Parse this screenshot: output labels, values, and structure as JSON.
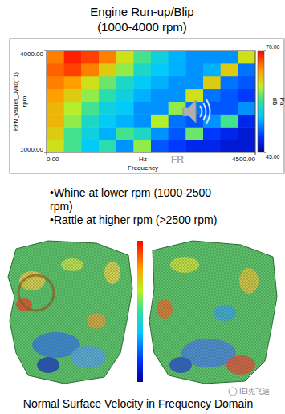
{
  "chart_data": {
    "type": "heatmap",
    "title": "Engine Run-up/Blip",
    "subtitle": "(1000-4000 rpm)",
    "x_label": "Frequency",
    "x_unit": "Hz",
    "y_label": "RPM_values_Dyno(T1)",
    "y_unit": "rpm",
    "annotation": "FR",
    "xlim": [
      0,
      4500
    ],
    "ylim": [
      1000,
      4000
    ],
    "xticks": [
      {
        "value": 0,
        "label": "0.00"
      },
      {
        "value": 4500,
        "label": "4500.00"
      }
    ],
    "yticks": [
      {
        "value": 1000,
        "label": "1000.00"
      },
      {
        "value": 4000,
        "label": "4000.00"
      }
    ],
    "xbins": [
      0,
      375,
      750,
      1125,
      1500,
      1875,
      2250,
      2625,
      3000,
      3375,
      3750,
      4125,
      4500
    ],
    "ybins": [
      1000,
      1375,
      1750,
      2125,
      2500,
      2875,
      3250,
      3625,
      4000
    ],
    "z": [
      [
        62,
        58,
        54,
        57,
        52,
        60,
        50,
        49,
        48,
        48,
        47,
        47
      ],
      [
        63,
        58,
        55,
        53,
        58,
        56,
        52,
        50,
        59,
        49,
        48,
        47
      ],
      [
        64,
        60,
        56,
        54,
        53,
        52,
        61,
        51,
        50,
        52,
        58,
        48
      ],
      [
        64,
        61,
        58,
        55,
        54,
        52,
        52,
        60,
        51,
        50,
        50,
        52
      ],
      [
        65,
        63,
        60,
        57,
        55,
        53,
        52,
        52,
        62,
        51,
        50,
        49
      ],
      [
        66,
        65,
        62,
        59,
        56,
        54,
        53,
        52,
        52,
        63,
        51,
        50
      ],
      [
        67,
        68,
        66,
        63,
        60,
        56,
        54,
        53,
        52,
        53,
        63,
        51
      ],
      [
        66,
        69,
        68,
        66,
        62,
        58,
        55,
        53,
        52,
        52,
        52,
        62
      ]
    ],
    "colorbar": {
      "lim": [
        45,
        70
      ],
      "ticks": [
        {
          "value": 45,
          "label": "45.00"
        },
        {
          "value": 70,
          "label": "70.00"
        }
      ],
      "units": [
        "dB",
        "Pa"
      ]
    }
  },
  "slide": {
    "bullets": [
      "•Whine at lower rpm (1000-2500 rpm)",
      "•Rattle at higher rpm (>2500 rpm)"
    ],
    "figure_caption": "Normal Surface Velocity in Frequency Domain",
    "watermark": "IEI先飞迪"
  }
}
